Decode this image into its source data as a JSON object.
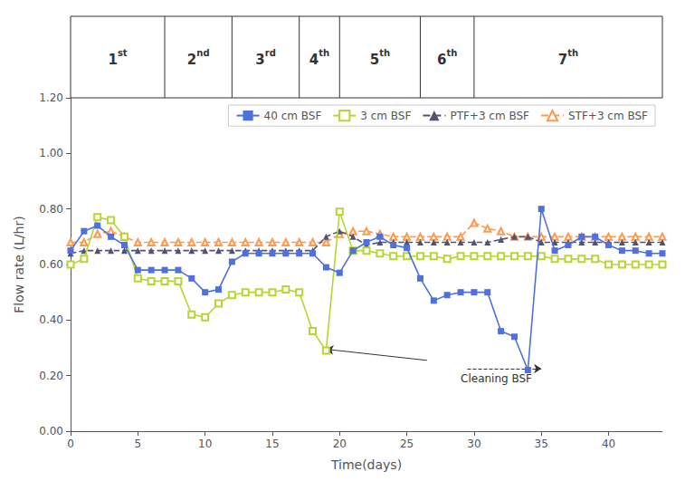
{
  "chart_data": {
    "type": "line",
    "xlabel": "Time(days)",
    "ylabel": "Flow rate (L/hr)",
    "xlim": [
      0,
      44
    ],
    "ylim": [
      0.0,
      1.2
    ],
    "xticks": [
      0,
      5,
      10,
      15,
      20,
      25,
      30,
      35,
      40
    ],
    "yticks": [
      {
        "value": 0.0,
        "label": "0.00"
      },
      {
        "value": 0.2,
        "label": "0.20"
      },
      {
        "value": 0.4,
        "label": "0.40"
      },
      {
        "value": 0.6,
        "label": "0.60"
      },
      {
        "value": 0.8,
        "label": "0.80"
      },
      {
        "value": 1.0,
        "label": "1.00"
      },
      {
        "value": 1.2,
        "label": "1.20"
      }
    ],
    "grid": false,
    "legend": "upper right",
    "x": [
      0,
      1,
      2,
      3,
      4,
      5,
      6,
      7,
      8,
      9,
      10,
      11,
      12,
      13,
      14,
      15,
      16,
      17,
      18,
      19,
      20,
      21,
      22,
      23,
      24,
      25,
      26,
      27,
      28,
      29,
      30,
      31,
      32,
      33,
      34,
      35,
      36,
      37,
      38,
      39,
      40,
      41,
      42,
      43,
      44
    ],
    "series": [
      {
        "name": "40 cm BSF",
        "marker": "square",
        "line_style": "solid",
        "values": [
          0.65,
          0.72,
          0.74,
          0.7,
          0.67,
          0.58,
          0.58,
          0.58,
          0.58,
          0.55,
          0.5,
          0.51,
          0.61,
          0.64,
          0.64,
          0.64,
          0.64,
          0.64,
          0.64,
          0.59,
          0.57,
          0.65,
          0.68,
          0.7,
          0.67,
          0.66,
          0.55,
          0.47,
          0.49,
          0.5,
          0.5,
          0.5,
          0.36,
          0.34,
          0.22,
          0.8,
          0.65,
          0.67,
          0.7,
          0.7,
          0.67,
          0.65,
          0.65,
          0.64,
          0.64
        ]
      },
      {
        "name": "3 cm BSF",
        "marker": "open_square",
        "line_style": "solid",
        "values": [
          0.6,
          0.62,
          0.77,
          0.76,
          0.7,
          0.55,
          0.54,
          0.54,
          0.54,
          0.42,
          0.41,
          0.46,
          0.49,
          0.5,
          0.5,
          0.5,
          0.51,
          0.5,
          0.36,
          0.29,
          0.79,
          0.65,
          0.65,
          0.64,
          0.63,
          0.63,
          0.63,
          0.63,
          0.62,
          0.63,
          0.63,
          0.63,
          0.63,
          0.63,
          0.63,
          0.63,
          0.62,
          0.62,
          0.62,
          0.62,
          0.6,
          0.6,
          0.6,
          0.6,
          0.6
        ]
      },
      {
        "name": "PTF+3 cm BSF",
        "marker": "triangle",
        "line_style": "dashed",
        "values": [
          0.64,
          0.65,
          0.65,
          0.65,
          0.65,
          0.65,
          0.65,
          0.65,
          0.65,
          0.65,
          0.65,
          0.65,
          0.65,
          0.65,
          0.65,
          0.65,
          0.65,
          0.65,
          0.65,
          0.7,
          0.72,
          0.7,
          0.67,
          0.68,
          0.68,
          0.68,
          0.68,
          0.68,
          0.68,
          0.68,
          0.68,
          0.68,
          0.69,
          0.7,
          0.7,
          0.68,
          0.68,
          0.68,
          0.68,
          0.68,
          0.68,
          0.68,
          0.68,
          0.68,
          0.68
        ]
      },
      {
        "name": "STF+3 cm BSF",
        "marker": "open_triangle",
        "line_style": "dashed",
        "values": [
          0.68,
          0.68,
          0.71,
          0.72,
          0.7,
          0.68,
          0.68,
          0.68,
          0.68,
          0.68,
          0.68,
          0.68,
          0.68,
          0.68,
          0.68,
          0.68,
          0.68,
          0.68,
          0.68,
          0.68,
          0.71,
          0.72,
          0.72,
          0.71,
          0.7,
          0.7,
          0.7,
          0.7,
          0.7,
          0.7,
          0.75,
          0.73,
          0.72,
          0.7,
          0.7,
          0.7,
          0.7,
          0.7,
          0.7,
          0.7,
          0.7,
          0.7,
          0.7,
          0.7,
          0.7
        ]
      }
    ],
    "period_labels": [
      "1",
      "2",
      "3",
      "4",
      "5",
      "6",
      "7"
    ],
    "period_sups": [
      "st",
      "nd",
      "rd",
      "th",
      "th",
      "th",
      "th"
    ],
    "period_boundaries": [
      0,
      7,
      12,
      17,
      20,
      26,
      30,
      44
    ],
    "annotations": [
      {
        "text": "Cleaning BSF",
        "x": 29,
        "y": 0.21
      }
    ],
    "arrows": [
      {
        "from": [
          26.5,
          0.255
        ],
        "to": [
          19,
          0.295
        ],
        "line_style": "solid"
      },
      {
        "from": [
          29.5,
          0.225
        ],
        "to": [
          35,
          0.225
        ],
        "line_style": "dashed"
      }
    ]
  }
}
